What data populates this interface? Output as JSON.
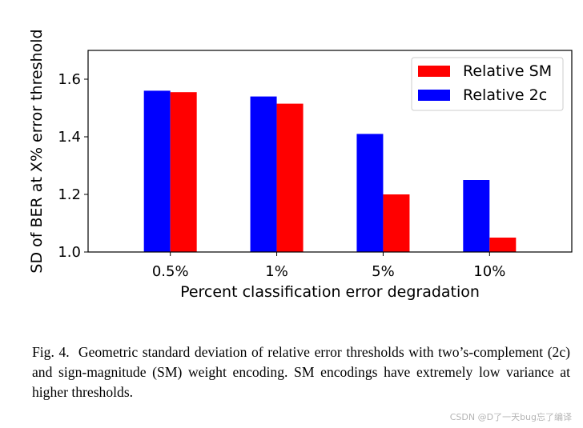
{
  "chart_data": {
    "type": "bar",
    "categories": [
      "0.5%",
      "1%",
      "5%",
      "10%"
    ],
    "series": [
      {
        "name": "Relative 2c",
        "color": "#0000ff",
        "values": [
          1.56,
          1.54,
          1.41,
          1.25
        ]
      },
      {
        "name": "Relative SM",
        "color": "#ff0000",
        "values": [
          1.555,
          1.515,
          1.2,
          1.05
        ]
      }
    ],
    "legend_order": [
      "Relative SM",
      "Relative 2c"
    ],
    "legend_position": "top-right",
    "title": "",
    "xlabel": "Percent classification error degradation",
    "ylabel": "SD of BER at X% error threshold",
    "ylim": [
      1.0,
      1.7
    ],
    "yticks": [
      1.0,
      1.2,
      1.4,
      1.6
    ],
    "ytick_labels": [
      "1.0",
      "1.2",
      "1.4",
      "1.6"
    ],
    "grid": false
  },
  "caption": {
    "label": "Fig. 4.",
    "text": "Geometric standard deviation of relative error thresholds with two’s-complement (2c) and sign-magnitude (SM) weight encoding. SM encodings have extremely low variance at higher thresholds."
  },
  "watermark": "CSDN @D了一天bug忘了编译"
}
